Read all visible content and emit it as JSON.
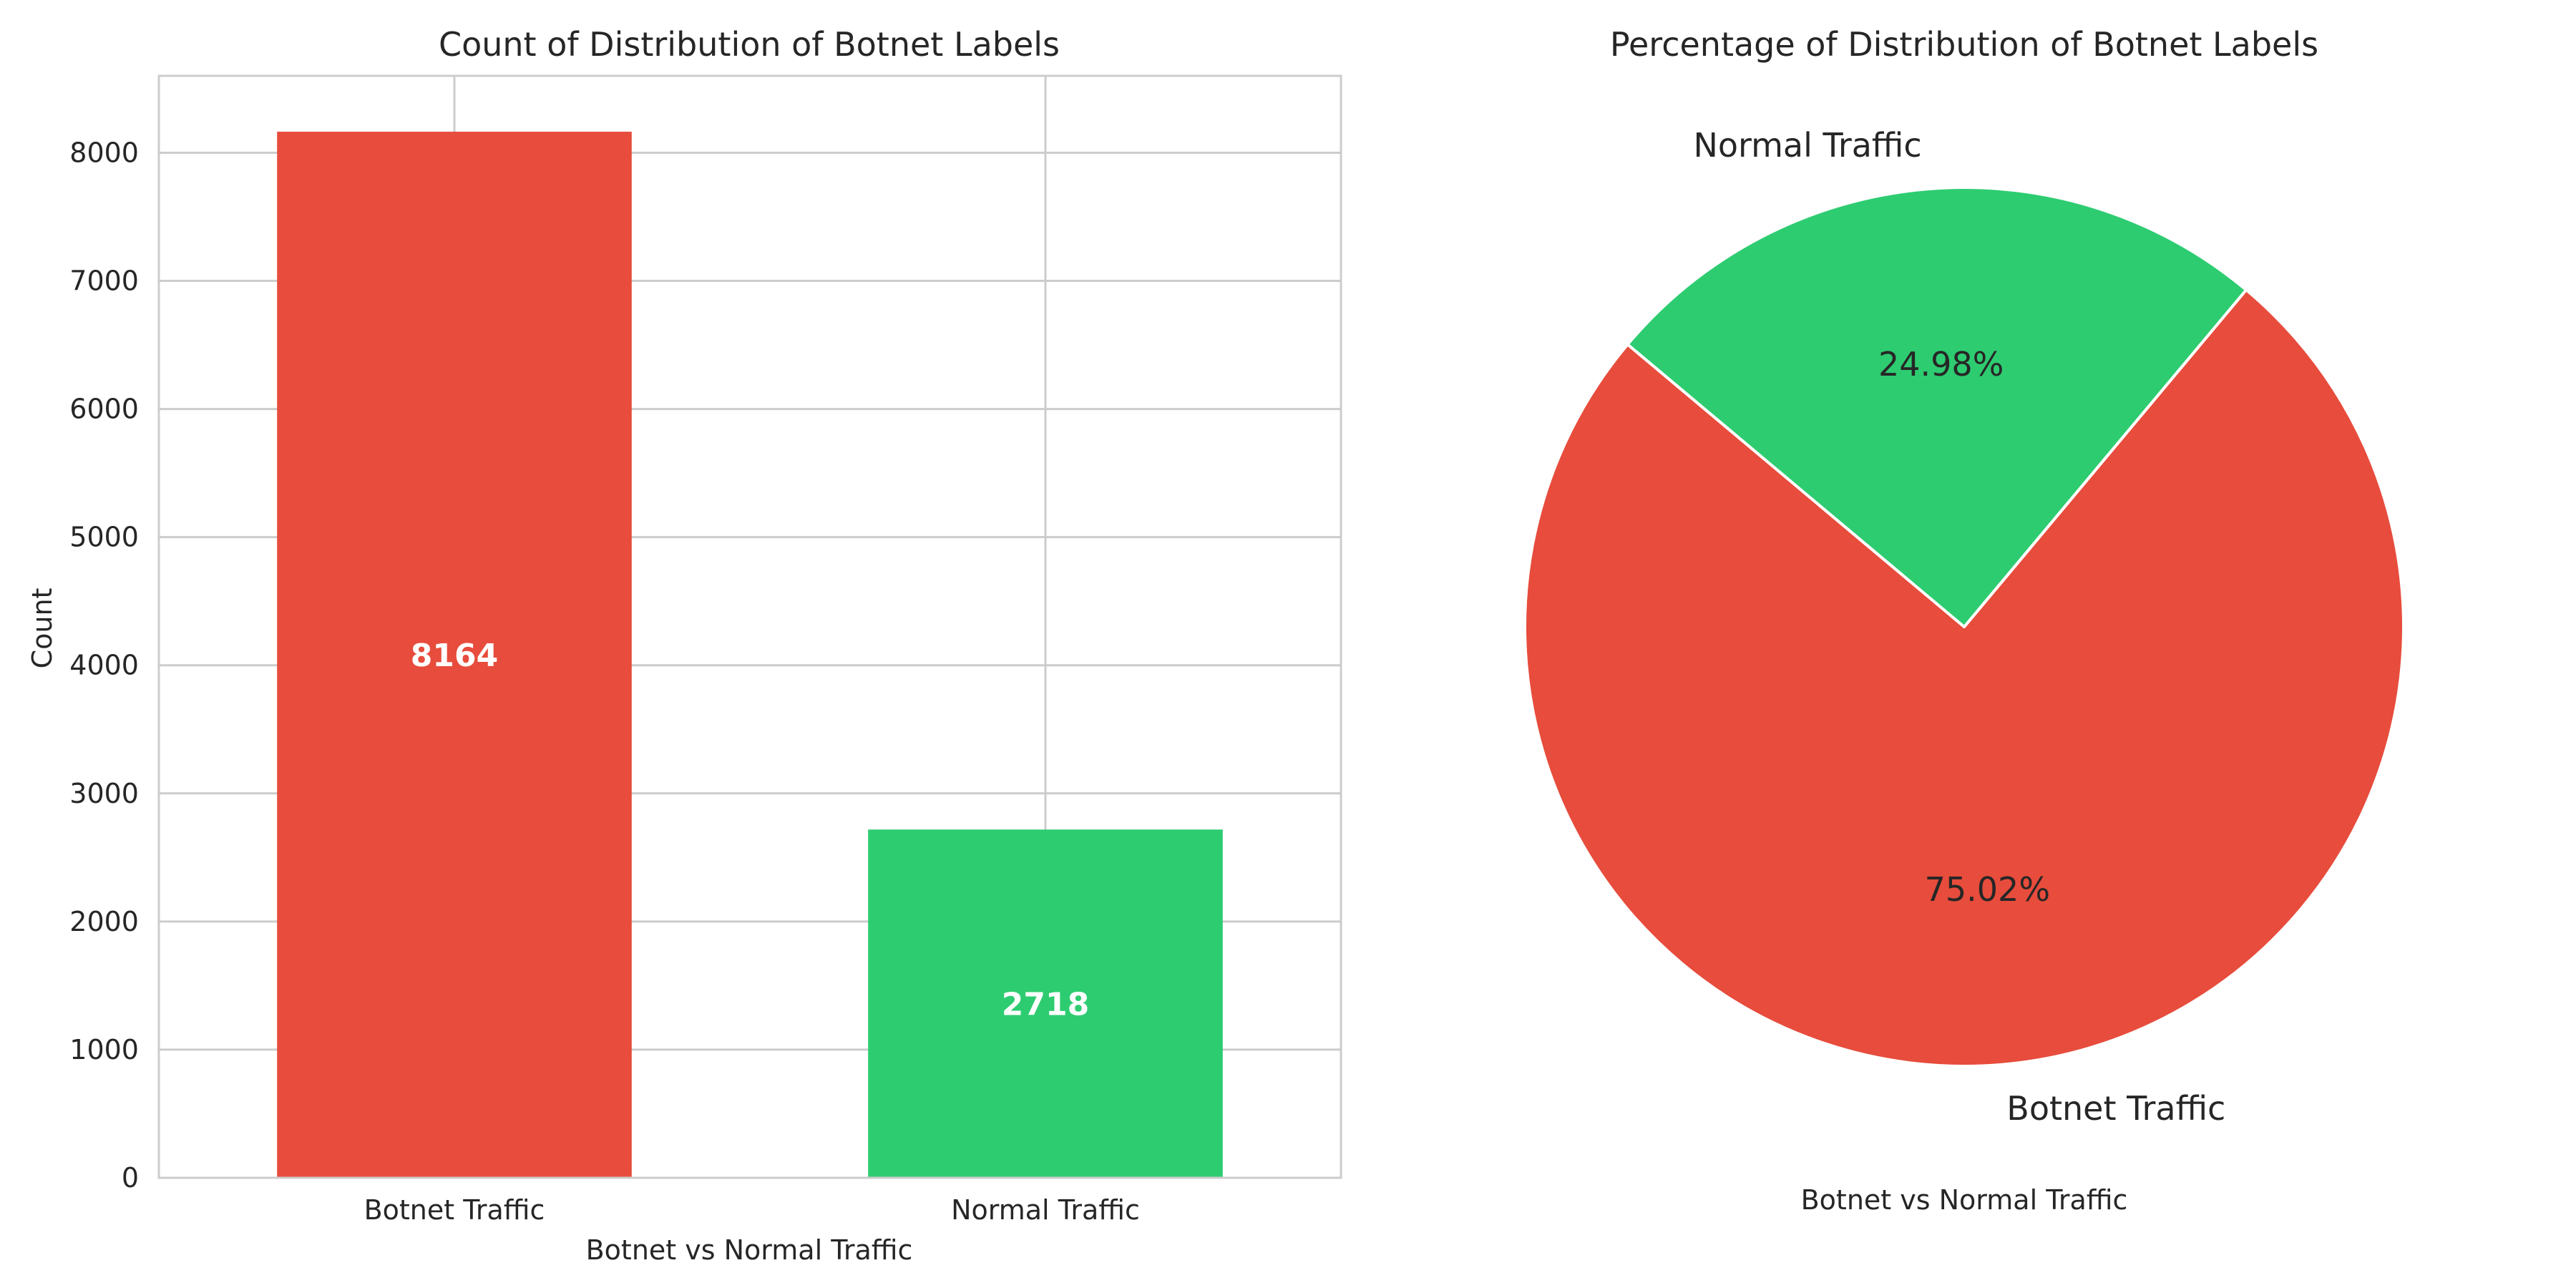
{
  "colors": {
    "botnet": "#e74c3c",
    "normal": "#2ecc71",
    "grid": "#cccccc",
    "frame": "#cccccc"
  },
  "chart_data": [
    {
      "type": "bar",
      "title": "Count of Distribution of Botnet Labels",
      "xlabel": "Botnet vs Normal Traffic",
      "ylabel": "Count",
      "categories": [
        "Botnet Traffic",
        "Normal Traffic"
      ],
      "values": [
        8164,
        2718
      ],
      "data_labels": [
        "8164",
        "2718"
      ],
      "ylim": [
        0,
        8600
      ],
      "yticks": [
        0,
        1000,
        2000,
        3000,
        4000,
        5000,
        6000,
        7000,
        8000
      ],
      "ytick_labels": [
        "0",
        "1000",
        "2000",
        "3000",
        "4000",
        "5000",
        "6000",
        "7000",
        "8000"
      ],
      "grid": true
    },
    {
      "type": "pie",
      "title": "Percentage of Distribution of Botnet Labels",
      "xlabel": "Botnet vs Normal Traffic",
      "labels": [
        "Botnet Traffic",
        "Normal Traffic"
      ],
      "values": [
        75.02,
        24.98
      ],
      "pct_labels": [
        "75.02%",
        "24.98%"
      ],
      "start_angle": 140
    }
  ]
}
